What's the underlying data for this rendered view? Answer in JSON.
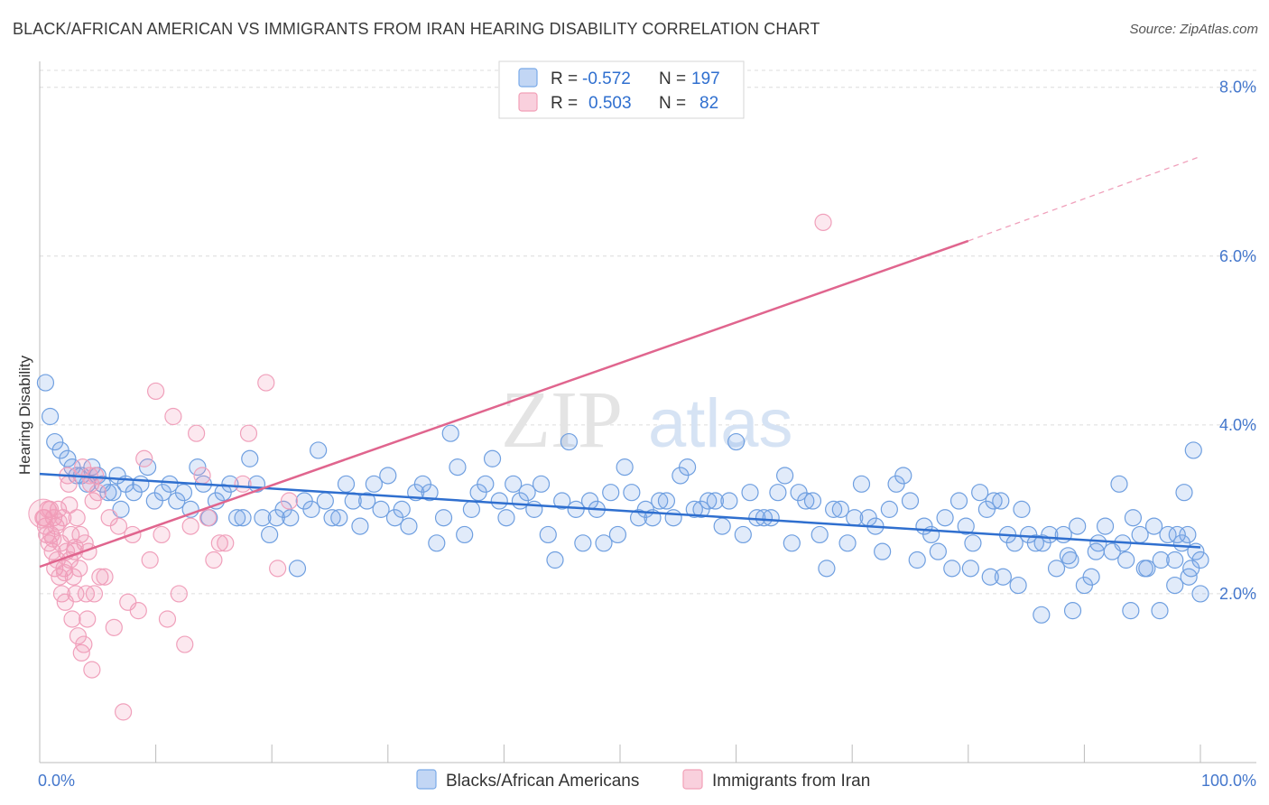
{
  "title": "BLACK/AFRICAN AMERICAN VS IMMIGRANTS FROM IRAN HEARING DISABILITY CORRELATION CHART",
  "source": "Source: ZipAtlas.com",
  "watermark": {
    "bold": "ZIP",
    "light": "atlas"
  },
  "legend": {
    "rows": [
      {
        "r_label": "R =",
        "r_value": "-0.572",
        "n_label": "N =",
        "n_value": "197",
        "color": "#7aaae8"
      },
      {
        "r_label": "R =",
        "r_value": "0.503",
        "n_label": "N =",
        "n_value": "82",
        "color": "#f2a0b8"
      }
    ]
  },
  "bottom_legend": [
    {
      "label": "Blacks/African Americans",
      "color": "#7aaae8"
    },
    {
      "label": "Immigrants from Iran",
      "color": "#f2a0b8"
    }
  ],
  "chart_data": {
    "type": "scatter",
    "xlabel": "",
    "ylabel": "Hearing Disability",
    "xlim": [
      0,
      100
    ],
    "ylim": [
      0,
      8.2
    ],
    "x_tick_labels": [
      {
        "value": 0,
        "label": "0.0%"
      },
      {
        "value": 100,
        "label": "100.0%"
      }
    ],
    "y_ticks": [
      {
        "value": 2,
        "label": "2.0%"
      },
      {
        "value": 4,
        "label": "4.0%"
      },
      {
        "value": 6,
        "label": "6.0%"
      },
      {
        "value": 8,
        "label": "8.0%"
      }
    ],
    "grid": "horizontal dashed",
    "legend_position": "top-center",
    "series": [
      {
        "name": "Blacks/African Americans",
        "color": "#5b93de",
        "trend": {
          "x": [
            0,
            100
          ],
          "y": [
            3.42,
            2.55
          ]
        },
        "points": [
          [
            0.5,
            4.5
          ],
          [
            0.9,
            4.1
          ],
          [
            1.3,
            3.8
          ],
          [
            1.8,
            3.7
          ],
          [
            2.4,
            3.6
          ],
          [
            2.8,
            3.5
          ],
          [
            3.2,
            3.4
          ],
          [
            3.6,
            3.4
          ],
          [
            4.1,
            3.3
          ],
          [
            4.5,
            3.5
          ],
          [
            5.0,
            3.4
          ],
          [
            5.4,
            3.3
          ],
          [
            5.9,
            3.2
          ],
          [
            6.3,
            3.2
          ],
          [
            6.7,
            3.4
          ],
          [
            7.0,
            3.0
          ],
          [
            7.4,
            3.3
          ],
          [
            8.1,
            3.2
          ],
          [
            8.7,
            3.3
          ],
          [
            9.3,
            3.5
          ],
          [
            9.9,
            3.1
          ],
          [
            10.6,
            3.2
          ],
          [
            11.2,
            3.3
          ],
          [
            11.8,
            3.1
          ],
          [
            12.4,
            3.2
          ],
          [
            13.0,
            3.0
          ],
          [
            13.6,
            3.5
          ],
          [
            14.1,
            3.3
          ],
          [
            14.6,
            2.9
          ],
          [
            15.2,
            3.1
          ],
          [
            15.8,
            3.2
          ],
          [
            16.4,
            3.3
          ],
          [
            17.0,
            2.9
          ],
          [
            17.5,
            2.9
          ],
          [
            18.1,
            3.6
          ],
          [
            18.7,
            3.3
          ],
          [
            19.2,
            2.9
          ],
          [
            19.8,
            2.7
          ],
          [
            20.4,
            2.9
          ],
          [
            21.0,
            3.0
          ],
          [
            21.6,
            2.9
          ],
          [
            22.2,
            2.3
          ],
          [
            22.8,
            3.1
          ],
          [
            23.4,
            3.0
          ],
          [
            24.0,
            3.7
          ],
          [
            24.6,
            3.1
          ],
          [
            25.2,
            2.9
          ],
          [
            25.8,
            2.9
          ],
          [
            26.4,
            3.3
          ],
          [
            27.0,
            3.1
          ],
          [
            27.6,
            2.8
          ],
          [
            28.2,
            3.1
          ],
          [
            28.8,
            3.3
          ],
          [
            29.4,
            3.0
          ],
          [
            30.0,
            3.4
          ],
          [
            30.6,
            2.9
          ],
          [
            31.2,
            3.0
          ],
          [
            31.8,
            2.8
          ],
          [
            32.4,
            3.2
          ],
          [
            33.0,
            3.3
          ],
          [
            33.6,
            3.2
          ],
          [
            34.2,
            2.6
          ],
          [
            34.8,
            2.9
          ],
          [
            35.4,
            3.9
          ],
          [
            36.0,
            3.5
          ],
          [
            36.6,
            2.7
          ],
          [
            37.2,
            3.0
          ],
          [
            37.8,
            3.2
          ],
          [
            38.4,
            3.3
          ],
          [
            39.0,
            3.6
          ],
          [
            39.6,
            3.1
          ],
          [
            40.2,
            2.9
          ],
          [
            40.8,
            3.3
          ],
          [
            41.4,
            3.1
          ],
          [
            42.0,
            3.2
          ],
          [
            42.6,
            3.0
          ],
          [
            43.2,
            3.3
          ],
          [
            43.8,
            2.7
          ],
          [
            44.4,
            2.4
          ],
          [
            45.0,
            3.1
          ],
          [
            45.6,
            3.8
          ],
          [
            46.2,
            3.0
          ],
          [
            46.8,
            2.6
          ],
          [
            47.4,
            3.1
          ],
          [
            48.0,
            3.0
          ],
          [
            48.6,
            2.6
          ],
          [
            49.2,
            3.2
          ],
          [
            49.8,
            2.7
          ],
          [
            50.4,
            3.5
          ],
          [
            51.0,
            3.2
          ],
          [
            51.6,
            2.9
          ],
          [
            52.2,
            3.0
          ],
          [
            52.8,
            2.9
          ],
          [
            53.4,
            3.1
          ],
          [
            54.0,
            3.1
          ],
          [
            54.6,
            2.9
          ],
          [
            55.2,
            3.4
          ],
          [
            55.8,
            3.5
          ],
          [
            56.4,
            3.0
          ],
          [
            57.0,
            3.0
          ],
          [
            57.6,
            3.1
          ],
          [
            58.2,
            3.1
          ],
          [
            58.8,
            2.8
          ],
          [
            59.4,
            3.1
          ],
          [
            60.0,
            3.8
          ],
          [
            60.6,
            2.7
          ],
          [
            61.2,
            3.2
          ],
          [
            61.8,
            2.9
          ],
          [
            62.4,
            2.9
          ],
          [
            63.0,
            2.9
          ],
          [
            63.6,
            3.2
          ],
          [
            64.2,
            3.4
          ],
          [
            64.8,
            2.6
          ],
          [
            65.4,
            3.2
          ],
          [
            66.0,
            3.1
          ],
          [
            66.6,
            3.1
          ],
          [
            67.2,
            2.7
          ],
          [
            67.8,
            2.3
          ],
          [
            68.4,
            3.0
          ],
          [
            69.0,
            3.0
          ],
          [
            69.6,
            2.6
          ],
          [
            70.2,
            2.9
          ],
          [
            70.8,
            3.3
          ],
          [
            71.4,
            2.9
          ],
          [
            72.0,
            2.8
          ],
          [
            72.6,
            2.5
          ],
          [
            73.2,
            3.0
          ],
          [
            73.8,
            3.3
          ],
          [
            74.4,
            3.4
          ],
          [
            75.0,
            3.1
          ],
          [
            75.6,
            2.4
          ],
          [
            76.2,
            2.8
          ],
          [
            76.8,
            2.7
          ],
          [
            77.4,
            2.5
          ],
          [
            78.0,
            2.9
          ],
          [
            78.6,
            2.3
          ],
          [
            79.2,
            3.1
          ],
          [
            79.8,
            2.8
          ],
          [
            80.4,
            2.6
          ],
          [
            81.0,
            3.2
          ],
          [
            81.6,
            3.0
          ],
          [
            82.2,
            3.1
          ],
          [
            82.8,
            3.1
          ],
          [
            83.4,
            2.7
          ],
          [
            84.0,
            2.6
          ],
          [
            84.6,
            3.0
          ],
          [
            85.2,
            2.7
          ],
          [
            85.8,
            2.6
          ],
          [
            86.4,
            2.6
          ],
          [
            87.0,
            2.7
          ],
          [
            87.6,
            2.3
          ],
          [
            88.2,
            2.7
          ],
          [
            88.8,
            2.4
          ],
          [
            89.4,
            2.8
          ],
          [
            90.0,
            2.1
          ],
          [
            90.6,
            2.2
          ],
          [
            91.2,
            2.6
          ],
          [
            91.8,
            2.8
          ],
          [
            92.4,
            2.5
          ],
          [
            93.0,
            3.3
          ],
          [
            93.6,
            2.4
          ],
          [
            94.2,
            2.9
          ],
          [
            94.8,
            2.7
          ],
          [
            95.4,
            2.3
          ],
          [
            96.0,
            2.8
          ],
          [
            96.6,
            2.4
          ],
          [
            97.2,
            2.7
          ],
          [
            97.8,
            2.4
          ],
          [
            98.4,
            2.6
          ],
          [
            99.0,
            2.2
          ],
          [
            99.6,
            2.5
          ],
          [
            100.0,
            2.4
          ],
          [
            94.0,
            1.8
          ],
          [
            96.5,
            1.8
          ],
          [
            97.8,
            2.1
          ],
          [
            98.6,
            3.2
          ],
          [
            99.2,
            2.3
          ],
          [
            100.0,
            2.0
          ],
          [
            98.9,
            2.7
          ],
          [
            99.4,
            3.7
          ],
          [
            98.0,
            2.7
          ],
          [
            95.2,
            2.3
          ],
          [
            93.3,
            2.6
          ],
          [
            91.0,
            2.5
          ],
          [
            89.0,
            1.8
          ],
          [
            86.3,
            1.75
          ],
          [
            84.3,
            2.1
          ],
          [
            83.0,
            2.2
          ],
          [
            81.9,
            2.2
          ],
          [
            80.2,
            2.3
          ],
          [
            88.6,
            2.45
          ]
        ]
      },
      {
        "name": "Immigrants from Iran",
        "color": "#f08aa8",
        "trend": {
          "x": [
            0,
            80
          ],
          "y": [
            2.32,
            6.18
          ]
        },
        "trend_extension": {
          "x": [
            80,
            100
          ],
          "y": [
            6.18,
            7.18
          ]
        },
        "points": [
          [
            0.3,
            2.9
          ],
          [
            0.5,
            2.8
          ],
          [
            0.6,
            2.7
          ],
          [
            0.8,
            2.6
          ],
          [
            0.9,
            3.0
          ],
          [
            1.0,
            2.7
          ],
          [
            1.1,
            2.5
          ],
          [
            1.2,
            2.9
          ],
          [
            1.3,
            2.3
          ],
          [
            1.4,
            2.8
          ],
          [
            1.5,
            2.4
          ],
          [
            1.6,
            3.0
          ],
          [
            1.7,
            2.2
          ],
          [
            1.8,
            2.6
          ],
          [
            1.9,
            2.0
          ],
          [
            2.0,
            2.9
          ],
          [
            2.1,
            2.3
          ],
          [
            2.2,
            1.9
          ],
          [
            2.3,
            2.5
          ],
          [
            2.4,
            3.4
          ],
          [
            2.5,
            3.3
          ],
          [
            2.6,
            2.4
          ],
          [
            2.7,
            2.7
          ],
          [
            2.8,
            1.7
          ],
          [
            2.9,
            2.2
          ],
          [
            3.0,
            2.5
          ],
          [
            3.1,
            2.0
          ],
          [
            3.2,
            2.9
          ],
          [
            3.3,
            1.5
          ],
          [
            3.4,
            2.3
          ],
          [
            3.5,
            2.7
          ],
          [
            3.6,
            1.3
          ],
          [
            3.7,
            3.5
          ],
          [
            3.8,
            1.4
          ],
          [
            3.9,
            2.6
          ],
          [
            4.0,
            2.0
          ],
          [
            4.1,
            1.7
          ],
          [
            4.2,
            2.5
          ],
          [
            4.3,
            3.4
          ],
          [
            4.4,
            3.3
          ],
          [
            4.5,
            1.1
          ],
          [
            4.6,
            3.1
          ],
          [
            4.7,
            2.0
          ],
          [
            4.8,
            3.4
          ],
          [
            5.0,
            3.2
          ],
          [
            5.2,
            2.2
          ],
          [
            5.6,
            2.2
          ],
          [
            6.0,
            2.9
          ],
          [
            6.4,
            1.6
          ],
          [
            6.8,
            2.8
          ],
          [
            7.2,
            0.6
          ],
          [
            7.6,
            1.9
          ],
          [
            8.0,
            2.7
          ],
          [
            8.5,
            1.8
          ],
          [
            9.0,
            3.6
          ],
          [
            9.5,
            2.4
          ],
          [
            10.0,
            4.4
          ],
          [
            10.5,
            2.7
          ],
          [
            11.0,
            1.7
          ],
          [
            11.5,
            4.1
          ],
          [
            12.0,
            2.0
          ],
          [
            12.5,
            1.4
          ],
          [
            13.0,
            2.8
          ],
          [
            13.5,
            3.9
          ],
          [
            14.0,
            3.4
          ],
          [
            14.5,
            2.9
          ],
          [
            15.0,
            2.4
          ],
          [
            15.5,
            2.6
          ],
          [
            16.0,
            2.6
          ],
          [
            17.5,
            3.3
          ],
          [
            18.0,
            3.9
          ],
          [
            19.5,
            4.5
          ],
          [
            20.5,
            2.3
          ],
          [
            21.5,
            3.1
          ],
          [
            67.5,
            6.4
          ],
          [
            0.4,
            2.9
          ],
          [
            0.7,
            3.0
          ],
          [
            1.15,
            2.65
          ],
          [
            1.65,
            2.85
          ],
          [
            2.15,
            2.25
          ],
          [
            2.55,
            3.05
          ],
          [
            3.05,
            2.55
          ]
        ]
      }
    ]
  }
}
